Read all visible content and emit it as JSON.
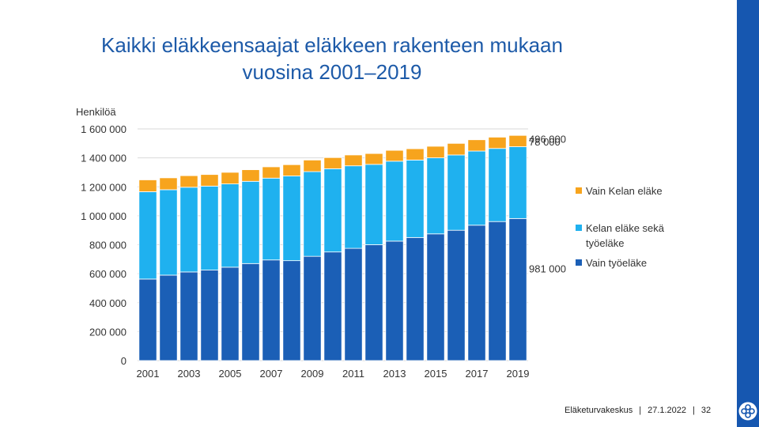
{
  "slide": {
    "title_line1": "Kaikki eläkkeensaajat eläkkeen rakenteen mukaan",
    "title_line2": "vuosina 2001–2019"
  },
  "footer": {
    "org": "Eläketurvakeskus",
    "date": "27.1.2022",
    "page": "32",
    "separator": "|"
  },
  "colors": {
    "title": "#1d5aa8",
    "vain_tyoelake": "#1b5fb6",
    "kelan_ja_tyoelake": "#1fb1ef",
    "vain_kelan": "#f7a41d",
    "side_bar": "#1657b0"
  },
  "chart_data": {
    "type": "bar",
    "stacked": true,
    "ylabel": "Henkilöä",
    "ylim": [
      0,
      1600000
    ],
    "yticks": [
      0,
      200000,
      400000,
      600000,
      800000,
      1000000,
      1200000,
      1400000,
      1600000
    ],
    "ytick_labels": [
      "0",
      "200 000",
      "400 000",
      "600 000",
      "800 000",
      "1 000 000",
      "1 200 000",
      "1 400 000",
      "1 600 000"
    ],
    "grid": true,
    "categories": [
      "2001",
      "2002",
      "2003",
      "2004",
      "2005",
      "2006",
      "2007",
      "2008",
      "2009",
      "2010",
      "2011",
      "2012",
      "2013",
      "2014",
      "2015",
      "2016",
      "2017",
      "2018",
      "2019"
    ],
    "xtick_labels": [
      "2001",
      "",
      "2003",
      "",
      "2005",
      "",
      "2007",
      "",
      "2009",
      "",
      "2011",
      "",
      "2013",
      "",
      "2015",
      "",
      "2017",
      "",
      "2019"
    ],
    "series": [
      {
        "name": "Vain työeläke",
        "color": "#1b5fb6",
        "values": [
          563000,
          590000,
          612000,
          625000,
          645000,
          670000,
          695000,
          690000,
          720000,
          750000,
          775000,
          800000,
          825000,
          850000,
          875000,
          900000,
          935000,
          960000,
          981000
        ]
      },
      {
        "name": "Kelan eläke sekä työeläke",
        "color": "#1fb1ef",
        "values": [
          603000,
          590000,
          585000,
          580000,
          575000,
          568000,
          565000,
          585000,
          585000,
          575000,
          570000,
          555000,
          552000,
          535000,
          525000,
          520000,
          512000,
          505000,
          496000
        ]
      },
      {
        "name": "Vain Kelan eläke",
        "color": "#f7a41d",
        "values": [
          82000,
          82000,
          80000,
          80000,
          80000,
          80000,
          78000,
          78000,
          80000,
          77000,
          75000,
          75000,
          75000,
          78000,
          80000,
          80000,
          78000,
          78000,
          78000
        ]
      }
    ],
    "legend": [
      {
        "label": "Vain Kelan eläke",
        "color": "#f7a41d"
      },
      {
        "label_line1": "Kelan eläke sekä",
        "label_line2": "työeläke",
        "color": "#1fb1ef"
      },
      {
        "label": "Vain työeläke",
        "color": "#1b5fb6"
      }
    ],
    "legend_position": "right",
    "annotations": [
      {
        "text": "78 000",
        "series": "Vain Kelan eläke"
      },
      {
        "text": "496 000",
        "series": "Kelan eläke sekä työeläke"
      },
      {
        "text": "981 000",
        "series": "Vain työeläke"
      }
    ]
  }
}
